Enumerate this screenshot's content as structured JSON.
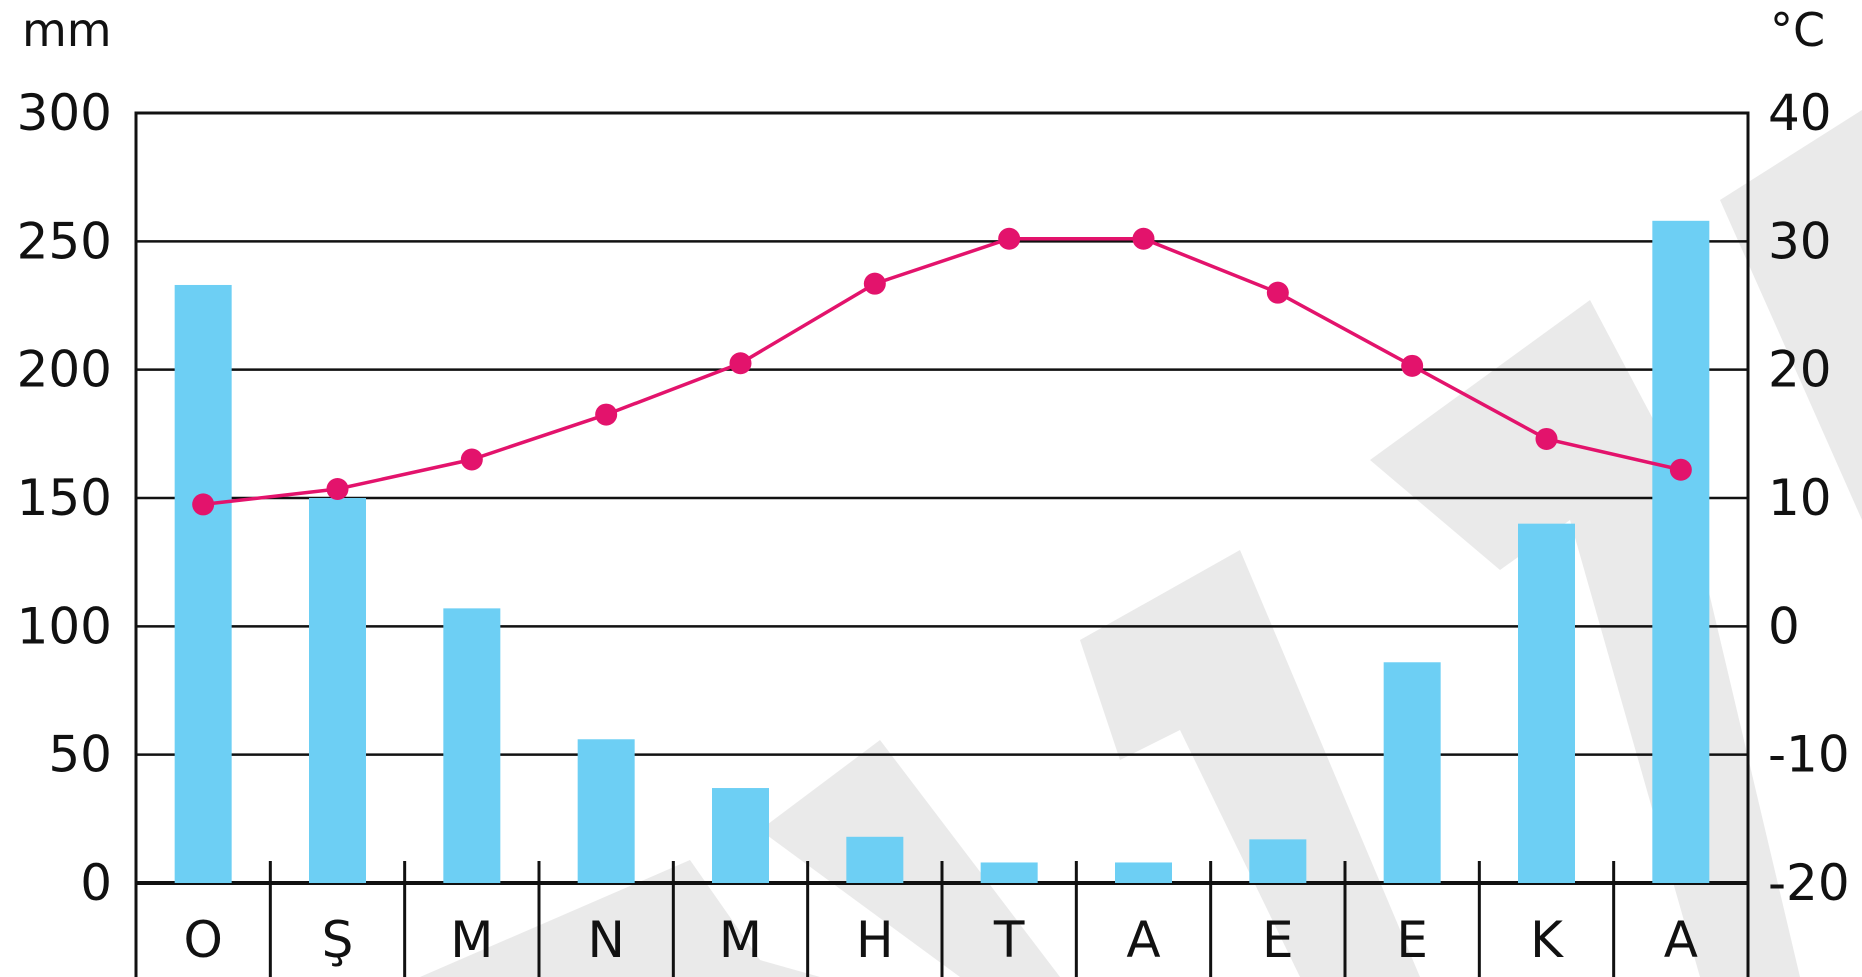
{
  "chart_data": {
    "type": "bar+line",
    "left_axis_unit": "mm",
    "right_axis_unit": "°C",
    "left_ticks": [
      "300",
      "250",
      "200",
      "150",
      "100",
      "50",
      "0"
    ],
    "right_ticks": [
      "40",
      "30",
      "20",
      "10",
      "0",
      "-10",
      "-20"
    ],
    "left_ylim": [
      0,
      300
    ],
    "right_ylim": [
      -20,
      40
    ],
    "grid": "horizontal",
    "categories": [
      "O",
      "Ş",
      "M",
      "N",
      "M",
      "H",
      "T",
      "A",
      "E",
      "E",
      "K",
      "A"
    ],
    "precipitation_mm": [
      233,
      150,
      107,
      56,
      37,
      18,
      8,
      8,
      17,
      86,
      140,
      258
    ],
    "temperature_c": [
      9.5,
      10.7,
      13,
      16.5,
      20.5,
      26.7,
      30.2,
      30.2,
      26,
      20.3,
      14.6,
      12.2
    ],
    "colors": {
      "bars": "#6dcff4",
      "line": "#e3136c",
      "axis": "#111111"
    }
  }
}
